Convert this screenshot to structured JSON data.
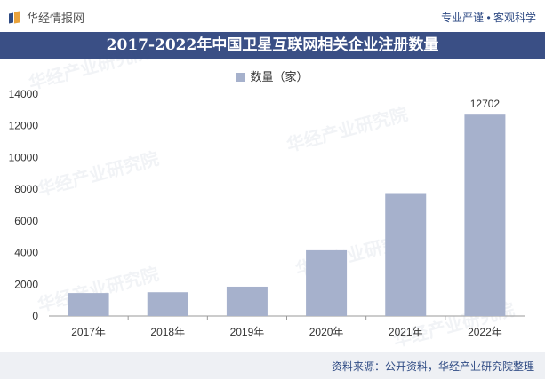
{
  "header": {
    "brand": "华经情报网",
    "slogan": "专业严谨 • 客观科学"
  },
  "title": "2017-2022年中国卫星互联网相关企业注册数量",
  "legend": {
    "label": "数量（家）"
  },
  "watermark": {
    "text": "华经产业研究院",
    "url": "www.huaon.com"
  },
  "source": "资料来源：公开资料，华经产业研究院整理",
  "colors": {
    "bar": "#a6b1cc",
    "title_band": "#3a4f85",
    "source_band": "#eef0f4"
  },
  "chart_data": {
    "type": "bar",
    "categories": [
      "2017年",
      "2018年",
      "2019年",
      "2020年",
      "2021年",
      "2022年"
    ],
    "series": [
      {
        "name": "数量（家）",
        "values": [
          1450,
          1500,
          1850,
          4150,
          7700,
          12702
        ]
      }
    ],
    "data_labels": [
      "",
      "",
      "",
      "",
      "",
      "12702"
    ],
    "ylim": [
      0,
      14000
    ],
    "yticks": [
      0,
      2000,
      4000,
      6000,
      8000,
      10000,
      12000,
      14000
    ],
    "legend_position": "top-center",
    "grid": false
  }
}
